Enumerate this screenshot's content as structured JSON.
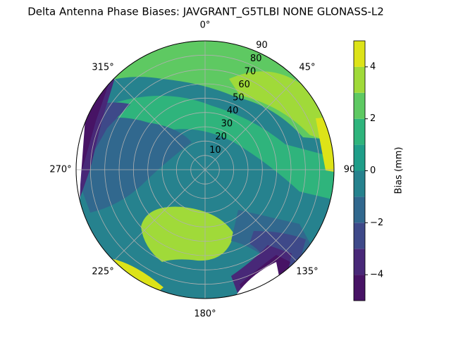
{
  "chart_data": {
    "type": "polar_contour",
    "title": "Delta Antenna Phase Biases: JAVGRANT_G5TLBI NONE GLONASS-L2",
    "theta_zero": "N",
    "theta_direction": "clockwise",
    "thetaticks": [
      {
        "value": 0,
        "label": "0°"
      },
      {
        "value": 45,
        "label": "45°"
      },
      90,
      {
        "value": 135,
        "label": "135°"
      },
      {
        "value": 180,
        "label": "180°"
      },
      {
        "value": 225,
        "label": "225°"
      },
      {
        "value": 270,
        "label": "270°"
      },
      {
        "value": 315,
        "label": "315°"
      }
    ],
    "rlim": [
      0,
      90
    ],
    "rticks": [
      10,
      20,
      30,
      40,
      50,
      60,
      70,
      80,
      90
    ],
    "grid": true,
    "colorbar": {
      "label": "Bias (mm)",
      "levels": [
        -5,
        -4,
        -3,
        -2,
        -1,
        0,
        1,
        2,
        3,
        4,
        5
      ],
      "colors": [
        "#471365",
        "#482878",
        "#3e4989",
        "#31688e",
        "#26828e",
        "#1f9e89",
        "#2fb47c",
        "#5ec962",
        "#a0da39",
        "#dde318"
      ],
      "ticks": [
        {
          "value": -4,
          "label": "−4"
        },
        {
          "value": -2,
          "label": "−2"
        },
        0,
        2,
        4
      ]
    }
  }
}
